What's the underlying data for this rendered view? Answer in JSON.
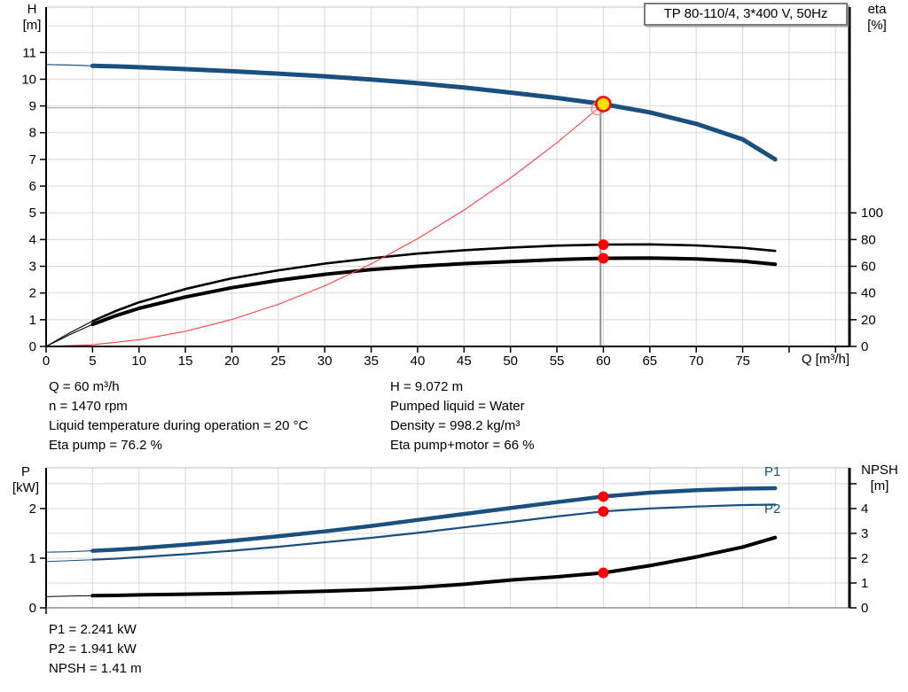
{
  "info_block": {
    "left": [
      "Q = 60 m³/h",
      "n = 1470 rpm",
      "Liquid temperature during operation = 20 °C",
      "Eta pump = 76.2 %"
    ],
    "right": [
      "H = 9.072 m",
      "Pumped liquid = Water",
      "Density = 998.2 kg/m³",
      "Eta pump+motor = 66 %"
    ]
  },
  "results_block": [
    "P1 = 2.241 kW",
    "P2 = 1.941 kW",
    "NPSH = 1.41 m"
  ],
  "chart_data": [
    {
      "type": "line",
      "title": "TP 80-110/4, 3*400 V, 50Hz",
      "xlabel": "Q [m³/h]",
      "ylabel_left": {
        "symbol": "H",
        "unit": "[m]"
      },
      "ylabel_right": {
        "symbol": "eta",
        "unit": "[%]"
      },
      "x_axis": {
        "min": 0,
        "max": 86.5,
        "grid_step": 5,
        "ticks": [
          0,
          5,
          10,
          15,
          20,
          25,
          30,
          35,
          40,
          45,
          50,
          55,
          60,
          65,
          70,
          75
        ],
        "unlabeled_ticks": [
          80,
          85
        ]
      },
      "left_axis": {
        "min": 0,
        "max": 12.7,
        "grid_step": 1,
        "ticks": [
          0,
          1,
          2,
          3,
          4,
          5,
          6,
          7,
          8,
          9,
          10,
          11
        ]
      },
      "right_axis": {
        "ticks": [
          0,
          20,
          40,
          60,
          80,
          100
        ],
        "unlabeled_ticks": [],
        "left_units_per_right_unit": 0.05
      },
      "grid_color": "#d8d8d8",
      "bottom_axis": {
        "color": "#000000",
        "width": 2
      },
      "crosshair": {
        "q": 59.7,
        "h_point": 9.072,
        "h_line": 8.93,
        "q_line_end": 59.4,
        "vline_color": "#8f8f8f",
        "hline_color": "#a8a8a8"
      },
      "series": [
        {
          "name": "pump-curve-QH",
          "axis": "left",
          "color": "#1a5080",
          "width_thin": 1.2,
          "width_thick": 5,
          "thick_from": 5,
          "x": [
            0,
            2.5,
            5,
            7.5,
            10,
            15,
            20,
            25,
            30,
            35,
            40,
            45,
            50,
            55,
            60,
            65,
            70,
            75,
            78.5
          ],
          "y": [
            10.55,
            10.53,
            10.5,
            10.48,
            10.45,
            10.38,
            10.3,
            10.21,
            10.11,
            9.99,
            9.85,
            9.69,
            9.5,
            9.3,
            9.07,
            8.76,
            8.33,
            7.75,
            7.0
          ]
        },
        {
          "name": "eta-pump-curve",
          "axis": "right",
          "color": "#000000",
          "width_thin": 1.1,
          "width_thick": 2.6,
          "thick_from": 5,
          "x": [
            0,
            2.5,
            5,
            7.5,
            10,
            15,
            20,
            25,
            30,
            35,
            40,
            45,
            50,
            55,
            60,
            65,
            70,
            75,
            78.5
          ],
          "y": [
            0,
            10,
            19,
            26.5,
            33,
            43,
            51,
            57,
            62,
            66,
            69.5,
            72,
            74,
            75.5,
            76.2,
            76.4,
            75.6,
            73.8,
            71.5
          ]
        },
        {
          "name": "eta-pump-motor-curve",
          "axis": "right",
          "color": "#000000",
          "width_thin": 1.1,
          "width_thick": 4,
          "thick_from": 5,
          "x": [
            0,
            2.5,
            5,
            7.5,
            10,
            15,
            20,
            25,
            30,
            35,
            40,
            45,
            50,
            55,
            60,
            65,
            70,
            75,
            78.5
          ],
          "y": [
            0,
            8.7,
            16.5,
            23,
            28.5,
            37,
            44,
            49.5,
            54,
            57.5,
            60,
            62,
            63.5,
            65,
            66,
            66.2,
            65.5,
            63.8,
            61.5
          ]
        },
        {
          "name": "system-curve",
          "axis": "left",
          "color": "#ff4040",
          "width_thin": 1.1,
          "width_thick": 0,
          "thick_from": null,
          "x": [
            0,
            5,
            10,
            15,
            20,
            25,
            30,
            35,
            40,
            45,
            50,
            55,
            60
          ],
          "y": [
            0,
            0.063,
            0.252,
            0.567,
            1.008,
            1.575,
            2.268,
            3.087,
            4.032,
            5.103,
            6.3,
            7.623,
            9.072
          ]
        }
      ],
      "markers": [
        {
          "name": "system-curve-intersection-point",
          "x": 59.4,
          "y": 8.9,
          "axis": "left",
          "r": 7,
          "fill": "none",
          "stroke": "#ff8a8a",
          "stroke_width": 1.6
        },
        {
          "name": "duty-point",
          "x": 60,
          "y": 9.072,
          "axis": "left",
          "r": 8,
          "fill": "#ffe100",
          "stroke": "#ff0000",
          "stroke_width": 2.6
        },
        {
          "name": "eta-pump-duty-point",
          "x": 60,
          "y": 76.2,
          "axis": "right",
          "r": 6,
          "fill": "#ff0000",
          "stroke": "none",
          "stroke_width": 0
        },
        {
          "name": "eta-pump-motor-duty-point",
          "x": 60,
          "y": 66,
          "axis": "right",
          "r": 6,
          "fill": "#ff0000",
          "stroke": "none",
          "stroke_width": 0
        }
      ]
    },
    {
      "type": "line",
      "title": "",
      "xlabel": "",
      "ylabel_left": {
        "symbol": "P",
        "unit": "[kW]"
      },
      "ylabel_right": {
        "symbol": "NPSH",
        "unit": "[m]"
      },
      "x_axis": {
        "min": 0,
        "max": 86.5,
        "grid_step": 5,
        "ticks": [],
        "unlabeled_ticks": [
          0
        ]
      },
      "left_axis": {
        "min": 0,
        "max": 2.82,
        "grid_step": 0.5,
        "ticks": [
          0,
          1,
          2
        ]
      },
      "right_axis": {
        "ticks": [
          0,
          1,
          2,
          3,
          4
        ],
        "unlabeled_ticks": [
          5
        ],
        "left_units_per_right_unit": 0.5
      },
      "grid_color": "#d8d8d8",
      "bottom_axis": {
        "color": "#777777",
        "width": 1.2
      },
      "crosshair": null,
      "series": [
        {
          "name": "P1",
          "axis": "left",
          "color": "#1a5080",
          "width_thin": 1.1,
          "width_thick": 4.5,
          "thick_from": 5,
          "x": [
            0,
            2.5,
            5,
            7.5,
            10,
            15,
            20,
            25,
            30,
            35,
            40,
            45,
            50,
            55,
            60,
            65,
            70,
            75,
            78.5
          ],
          "y": [
            1.12,
            1.13,
            1.15,
            1.17,
            1.2,
            1.27,
            1.35,
            1.44,
            1.54,
            1.65,
            1.77,
            1.89,
            2.01,
            2.13,
            2.241,
            2.32,
            2.37,
            2.4,
            2.41
          ]
        },
        {
          "name": "P2",
          "axis": "left",
          "color": "#1a5080",
          "width_thin": 1.0,
          "width_thick": 2.2,
          "thick_from": 5,
          "x": [
            0,
            2.5,
            5,
            7.5,
            10,
            15,
            20,
            25,
            30,
            35,
            40,
            45,
            50,
            55,
            60,
            65,
            70,
            75,
            78.5
          ],
          "y": [
            0.93,
            0.95,
            0.97,
            0.99,
            1.02,
            1.08,
            1.15,
            1.23,
            1.32,
            1.41,
            1.51,
            1.62,
            1.73,
            1.84,
            1.941,
            2.0,
            2.04,
            2.07,
            2.08
          ]
        },
        {
          "name": "NPSH",
          "axis": "right",
          "color": "#000000",
          "width_thin": 1.0,
          "width_thick": 4,
          "thick_from": 5,
          "x": [
            0,
            2.5,
            5,
            7.5,
            10,
            15,
            20,
            25,
            30,
            35,
            40,
            45,
            50,
            55,
            60,
            65,
            70,
            75,
            78.5
          ],
          "y": [
            0.45,
            0.47,
            0.49,
            0.5,
            0.52,
            0.55,
            0.58,
            0.62,
            0.67,
            0.73,
            0.82,
            0.95,
            1.12,
            1.25,
            1.41,
            1.7,
            2.05,
            2.45,
            2.83
          ]
        }
      ],
      "markers": [
        {
          "name": "p1-duty-point",
          "x": 60,
          "y": 2.241,
          "axis": "left",
          "r": 6,
          "fill": "#ff0000",
          "stroke": "none",
          "stroke_width": 0
        },
        {
          "name": "p2-duty-point",
          "x": 60,
          "y": 1.941,
          "axis": "left",
          "r": 6,
          "fill": "#ff0000",
          "stroke": "none",
          "stroke_width": 0
        },
        {
          "name": "npsh-duty-point",
          "x": 60,
          "y": 1.41,
          "axis": "right",
          "r": 6,
          "fill": "#ff0000",
          "stroke": "none",
          "stroke_width": 0
        }
      ]
    }
  ]
}
